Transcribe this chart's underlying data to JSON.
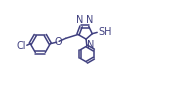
{
  "bg_color": "#ffffff",
  "line_color": "#404080",
  "text_color": "#404080",
  "line_width": 1.1,
  "font_size": 7.0,
  "xlim": [
    0,
    1.8
  ],
  "ylim": [
    0,
    0.98
  ]
}
